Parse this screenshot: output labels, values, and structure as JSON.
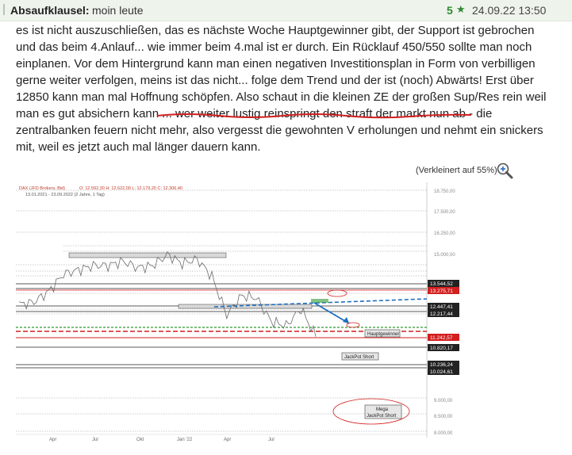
{
  "header": {
    "author": "Absaufklausel:",
    "subject": "moin leute",
    "rating": "5",
    "rating_icon": "star-icon",
    "timestamp": "24.09.22 13:50"
  },
  "post": {
    "lines": [
      "es ist nicht auszuschließen, das es nächste Woche Hauptgewinner gibt, der Support ist gebrochen",
      "und das beim 4.Anlauf... wie immer beim 4.mal ist er durch. Ein Rücklauf 450/550 sollte man noch",
      "einplanen. Vor dem Hintergrund kann man einen negativen Investitionsplan in Form von verbilligen",
      "gerne weiter verfolgen, meins ist das nicht... folge dem Trend und der ist (noch) Abwärts! Erst über",
      "12850 kann man mal Hoffnung schöpfen. Also schaut in die kleinen ZE der großen Sup/Res rein weil",
      "man es gut absichern kann ... wer weiter lustig reinspringt den straft der markt nun ab - die",
      "zentralbanken feuern nicht mehr, also vergesst die gewohnten V erholungen und nehmt ein snickers",
      "mit, weil es jetzt auch mal länger dauern kann."
    ],
    "image_note": "(Verkleinert auf 55%)",
    "zoom_icon": "magnifier-plus-icon"
  },
  "chart_data": {
    "type": "line",
    "title": "DAX (JFD Brokers, Bid)",
    "ohlc": "O: 12.592,30  H: 12.622,00  L: 12.179,20  C: 12.306,40",
    "range_text": "13.01.2021 - 23.09.2022  (2 Jahre, 1 Tag)",
    "x_ticks": [
      "Apr",
      "Jul",
      "Okt",
      "Jan '22",
      "Apr",
      "Jul"
    ],
    "y_ticks": [
      "18.750,00",
      "17.500,00",
      "16.250,00",
      "15.000,00",
      "9.000,00",
      "8.500,00",
      "8.000,00"
    ],
    "price_labels": [
      {
        "text": "13.544,52",
        "style": "dark"
      },
      {
        "text": "13.275,71",
        "style": "red"
      },
      {
        "text": "12.447,41",
        "style": "dark"
      },
      {
        "text": "12.217,44",
        "style": "dark"
      },
      {
        "text": "11.242,57",
        "style": "red"
      },
      {
        "text": "10.820,17",
        "style": "dark"
      },
      {
        "text": "10.236,24",
        "style": "dark"
      },
      {
        "text": "10.024,61",
        "style": "dark"
      }
    ],
    "annotations": [
      "Hauptgewinner",
      "JackPot Short",
      "Mega",
      "JackPot Short"
    ],
    "series": [
      {
        "name": "DAX",
        "x": [
          "2021-01",
          "2021-02",
          "2021-03",
          "2021-04",
          "2021-05",
          "2021-06",
          "2021-07",
          "2021-08",
          "2021-09",
          "2021-10",
          "2021-11",
          "2021-12",
          "2022-01",
          "2022-02",
          "2022-03",
          "2022-04",
          "2022-05",
          "2022-06",
          "2022-07",
          "2022-08",
          "2022-09"
        ],
        "values": [
          13800,
          13900,
          14400,
          15200,
          15400,
          15600,
          15600,
          15800,
          15500,
          15600,
          16100,
          15700,
          15900,
          15100,
          13300,
          14200,
          14100,
          13000,
          12800,
          13600,
          12300
        ]
      }
    ],
    "ylim": [
      7900,
      19100
    ],
    "colors": {
      "price_line": "#6b6b6b",
      "dashed_blue": "#1f6fbf",
      "arrow_blue": "#1f6fbf",
      "red": "#d21f1f",
      "green": "#2e9a2e"
    }
  }
}
